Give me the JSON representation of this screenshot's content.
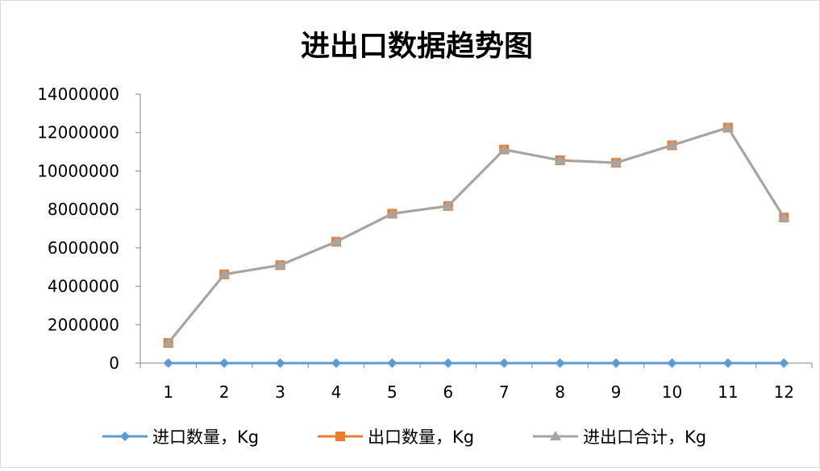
{
  "chart_data": {
    "type": "line",
    "title": "进出口数据趋势图",
    "xlabel": "",
    "ylabel": "",
    "categories": [
      "1",
      "2",
      "3",
      "4",
      "5",
      "6",
      "7",
      "8",
      "9",
      "10",
      "11",
      "12"
    ],
    "ylim": [
      0,
      14000000
    ],
    "yticks": [
      "0",
      "2000000",
      "4000000",
      "6000000",
      "8000000",
      "10000000",
      "12000000",
      "14000000"
    ],
    "grid": false,
    "legend_position": "bottom",
    "series": [
      {
        "name": "进口数量，Kg",
        "color": "#5B9BD5",
        "marker": "diamond",
        "values": [
          0,
          0,
          0,
          0,
          0,
          0,
          0,
          0,
          0,
          0,
          0,
          0
        ]
      },
      {
        "name": "出口数量，Kg",
        "color": "#ED7D31",
        "marker": "square",
        "values": [
          1050000,
          4620000,
          5100000,
          6320000,
          7780000,
          8180000,
          11120000,
          10560000,
          10430000,
          11340000,
          12260000,
          7580000
        ]
      },
      {
        "name": "进出口合计，Kg",
        "color": "#A5A5A5",
        "marker": "triangle",
        "values": [
          1050000,
          4620000,
          5100000,
          6320000,
          7780000,
          8180000,
          11120000,
          10560000,
          10430000,
          11340000,
          12260000,
          7580000
        ]
      }
    ]
  }
}
